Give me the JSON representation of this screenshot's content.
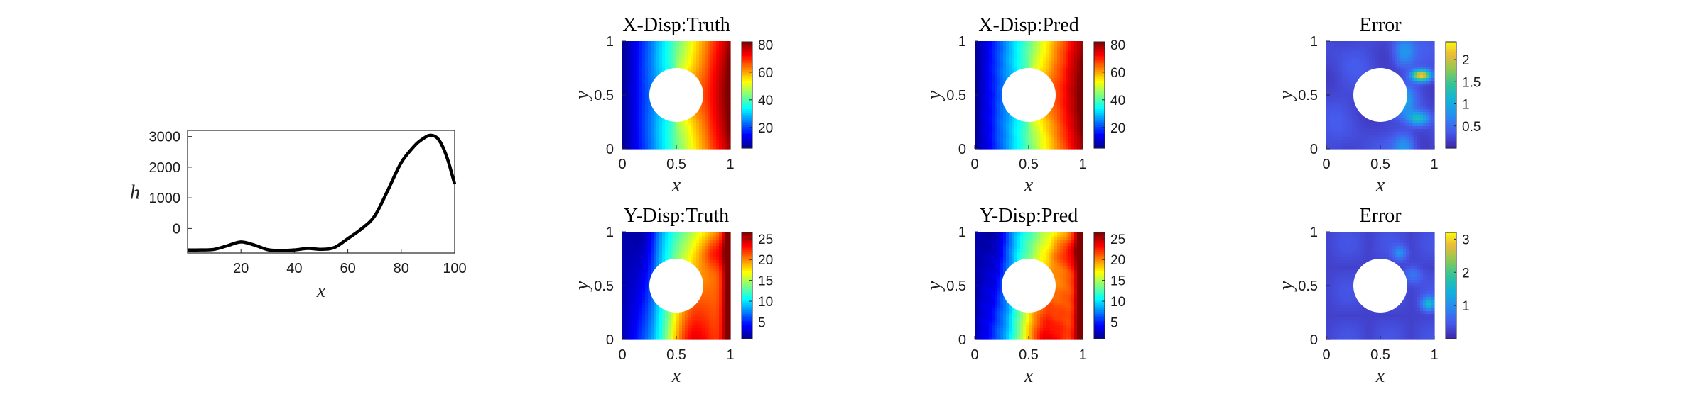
{
  "chart_data": [
    {
      "type": "line",
      "xlabel": "x",
      "ylabel": "h",
      "xlim": [
        0,
        100
      ],
      "ylim": [
        -800,
        3200
      ],
      "xticks": [
        "20",
        "40",
        "60",
        "80",
        "100"
      ],
      "yticks": [
        "0",
        "1000",
        "2000",
        "3000"
      ],
      "x": [
        0,
        5,
        10,
        15,
        20,
        25,
        30,
        35,
        40,
        45,
        50,
        55,
        60,
        65,
        70,
        75,
        80,
        85,
        88,
        91,
        94,
        97,
        100
      ],
      "values": [
        -700,
        -700,
        -680,
        -560,
        -440,
        -540,
        -690,
        -720,
        -700,
        -650,
        -680,
        -620,
        -330,
        -20,
        400,
        1250,
        2150,
        2700,
        2920,
        3040,
        2900,
        2350,
        1450
      ],
      "color": "#000000"
    },
    {
      "type": "heatmap",
      "title": "X-Disp:Truth",
      "field": "xdisp",
      "noise": 0,
      "xlabel": "x",
      "ylabel": "y",
      "xticks": [
        "0",
        "0.5",
        "1"
      ],
      "yticks": [
        "0",
        "0.5",
        "1"
      ],
      "colormap": "jet",
      "clim": [
        5,
        82
      ],
      "colorbar_ticks": [
        "20",
        "40",
        "60",
        "80"
      ]
    },
    {
      "type": "heatmap",
      "title": "X-Disp:Pred",
      "field": "xdisp",
      "noise": 0.5,
      "xlabel": "x",
      "ylabel": "y",
      "xticks": [
        "0",
        "0.5",
        "1"
      ],
      "yticks": [
        "0",
        "0.5",
        "1"
      ],
      "colormap": "jet",
      "clim": [
        5,
        82
      ],
      "colorbar_ticks": [
        "20",
        "40",
        "60",
        "80"
      ]
    },
    {
      "type": "heatmap",
      "title": "Error",
      "field": "err1",
      "noise": 0,
      "xlabel": "x",
      "ylabel": "y",
      "xticks": [
        "0",
        "0.5",
        "1"
      ],
      "yticks": [
        "0",
        "0.5",
        "1"
      ],
      "colormap": "parula",
      "clim": [
        0,
        2.4
      ],
      "colorbar_ticks": [
        "0.5",
        "1",
        "1.5",
        "2"
      ]
    },
    {
      "type": "heatmap",
      "title": "Y-Disp:Truth",
      "field": "ydisp",
      "noise": 0,
      "xlabel": "x",
      "ylabel": "y",
      "xticks": [
        "0",
        "0.5",
        "1"
      ],
      "yticks": [
        "0",
        "0.5",
        "1"
      ],
      "colormap": "jet",
      "clim": [
        1,
        26.5
      ],
      "colorbar_ticks": [
        "5",
        "10",
        "15",
        "20",
        "25"
      ]
    },
    {
      "type": "heatmap",
      "title": "Y-Disp:Pred",
      "field": "ydisp",
      "noise": 0.3,
      "xlabel": "x",
      "ylabel": "y",
      "xticks": [
        "0",
        "0.5",
        "1"
      ],
      "yticks": [
        "0",
        "0.5",
        "1"
      ],
      "colormap": "jet",
      "clim": [
        1,
        26.5
      ],
      "colorbar_ticks": [
        "5",
        "10",
        "15",
        "20",
        "25"
      ]
    },
    {
      "type": "heatmap",
      "title": "Error",
      "field": "err2",
      "noise": 0,
      "xlabel": "x",
      "ylabel": "y",
      "xticks": [
        "0",
        "0.5",
        "1"
      ],
      "yticks": [
        "0",
        "0.5",
        "1"
      ],
      "colormap": "parula",
      "clim": [
        0,
        3.2
      ],
      "colorbar_ticks": [
        "1",
        "2",
        "3"
      ]
    }
  ]
}
